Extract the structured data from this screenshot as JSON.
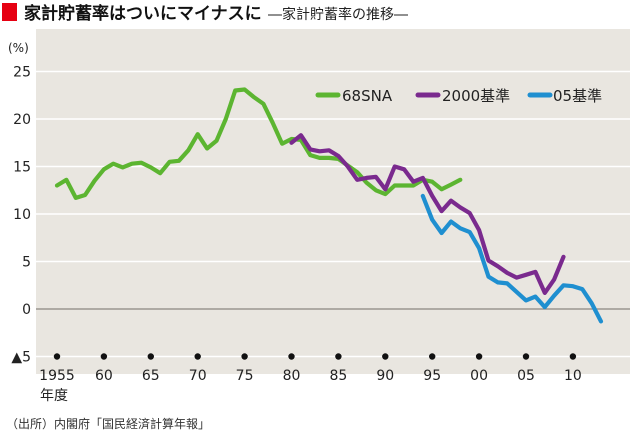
{
  "header": {
    "title": "家計貯蓄率はついにマイナスに",
    "subtitle": "―家計貯蓄率の推移―",
    "accent_color": "#e60012"
  },
  "footer": {
    "source": "（出所）内閣府「国民経済計算年報」"
  },
  "chart_data": {
    "type": "line",
    "title": "",
    "xlabel": "年度",
    "ylabel": "(%)",
    "xlim": [
      1955,
      2014
    ],
    "ylim": [
      -5,
      25
    ],
    "y_ticks": [
      25,
      20,
      15,
      10,
      5,
      0,
      -5
    ],
    "y_tick_labels": [
      "25",
      "20",
      "15",
      "10",
      "5",
      "0",
      "▲5"
    ],
    "x_ticks": [
      1955,
      1960,
      1965,
      1970,
      1975,
      1980,
      1985,
      1990,
      1995,
      2000,
      2005,
      2010
    ],
    "x_tick_labels": [
      "1955",
      "60",
      "65",
      "70",
      "75",
      "80",
      "85",
      "90",
      "95",
      "00",
      "05",
      "10"
    ],
    "grid": "horizontal",
    "background_color": "#e9e6e0",
    "legend_position": "top-right",
    "series": [
      {
        "name": "68SNA",
        "color": "#5cb531",
        "x": [
          1955,
          1956,
          1957,
          1958,
          1959,
          1960,
          1961,
          1962,
          1963,
          1964,
          1965,
          1966,
          1967,
          1968,
          1969,
          1970,
          1971,
          1972,
          1973,
          1974,
          1975,
          1976,
          1977,
          1978,
          1979,
          1980,
          1981,
          1982,
          1983,
          1984,
          1985,
          1986,
          1987,
          1988,
          1989,
          1990,
          1991,
          1992,
          1993,
          1994,
          1995,
          1996,
          1997,
          1998
        ],
        "y": [
          13.0,
          13.6,
          11.7,
          12.0,
          13.5,
          14.7,
          15.3,
          14.9,
          15.3,
          15.4,
          14.9,
          14.3,
          15.5,
          15.6,
          16.7,
          18.4,
          16.9,
          17.7,
          20.0,
          23.0,
          23.1,
          22.3,
          21.6,
          19.6,
          17.4,
          17.9,
          17.8,
          16.2,
          15.9,
          15.9,
          15.8,
          15.1,
          14.4,
          13.3,
          12.5,
          12.1,
          13.0,
          13.0,
          13.0,
          13.6,
          13.4,
          12.6,
          13.1,
          13.6
        ]
      },
      {
        "name": "2000基準",
        "color": "#7a2a8e",
        "x": [
          1980,
          1981,
          1982,
          1983,
          1984,
          1985,
          1986,
          1987,
          1988,
          1989,
          1990,
          1991,
          1992,
          1993,
          1994,
          1995,
          1996,
          1997,
          1998,
          1999,
          2000,
          2001,
          2002,
          2003,
          2004,
          2005,
          2006,
          2007,
          2008,
          2009
        ],
        "y": [
          17.5,
          18.3,
          16.8,
          16.6,
          16.7,
          16.1,
          15.0,
          13.6,
          13.8,
          13.9,
          12.6,
          15.0,
          14.7,
          13.4,
          13.8,
          11.9,
          10.3,
          11.4,
          10.7,
          10.1,
          8.3,
          5.1,
          4.5,
          3.8,
          3.3,
          3.6,
          3.9,
          1.7,
          3.1,
          5.5
        ]
      },
      {
        "name": "05基準",
        "color": "#1f8fd0",
        "x": [
          1994,
          1995,
          1996,
          1997,
          1998,
          1999,
          2000,
          2001,
          2002,
          2003,
          2004,
          2005,
          2006,
          2007,
          2008,
          2009,
          2010,
          2011,
          2012,
          2013
        ],
        "y": [
          11.9,
          9.4,
          8.0,
          9.2,
          8.5,
          8.1,
          6.4,
          3.4,
          2.8,
          2.7,
          1.8,
          0.9,
          1.3,
          0.2,
          1.4,
          2.5,
          2.4,
          2.1,
          0.6,
          -1.3
        ]
      }
    ]
  }
}
